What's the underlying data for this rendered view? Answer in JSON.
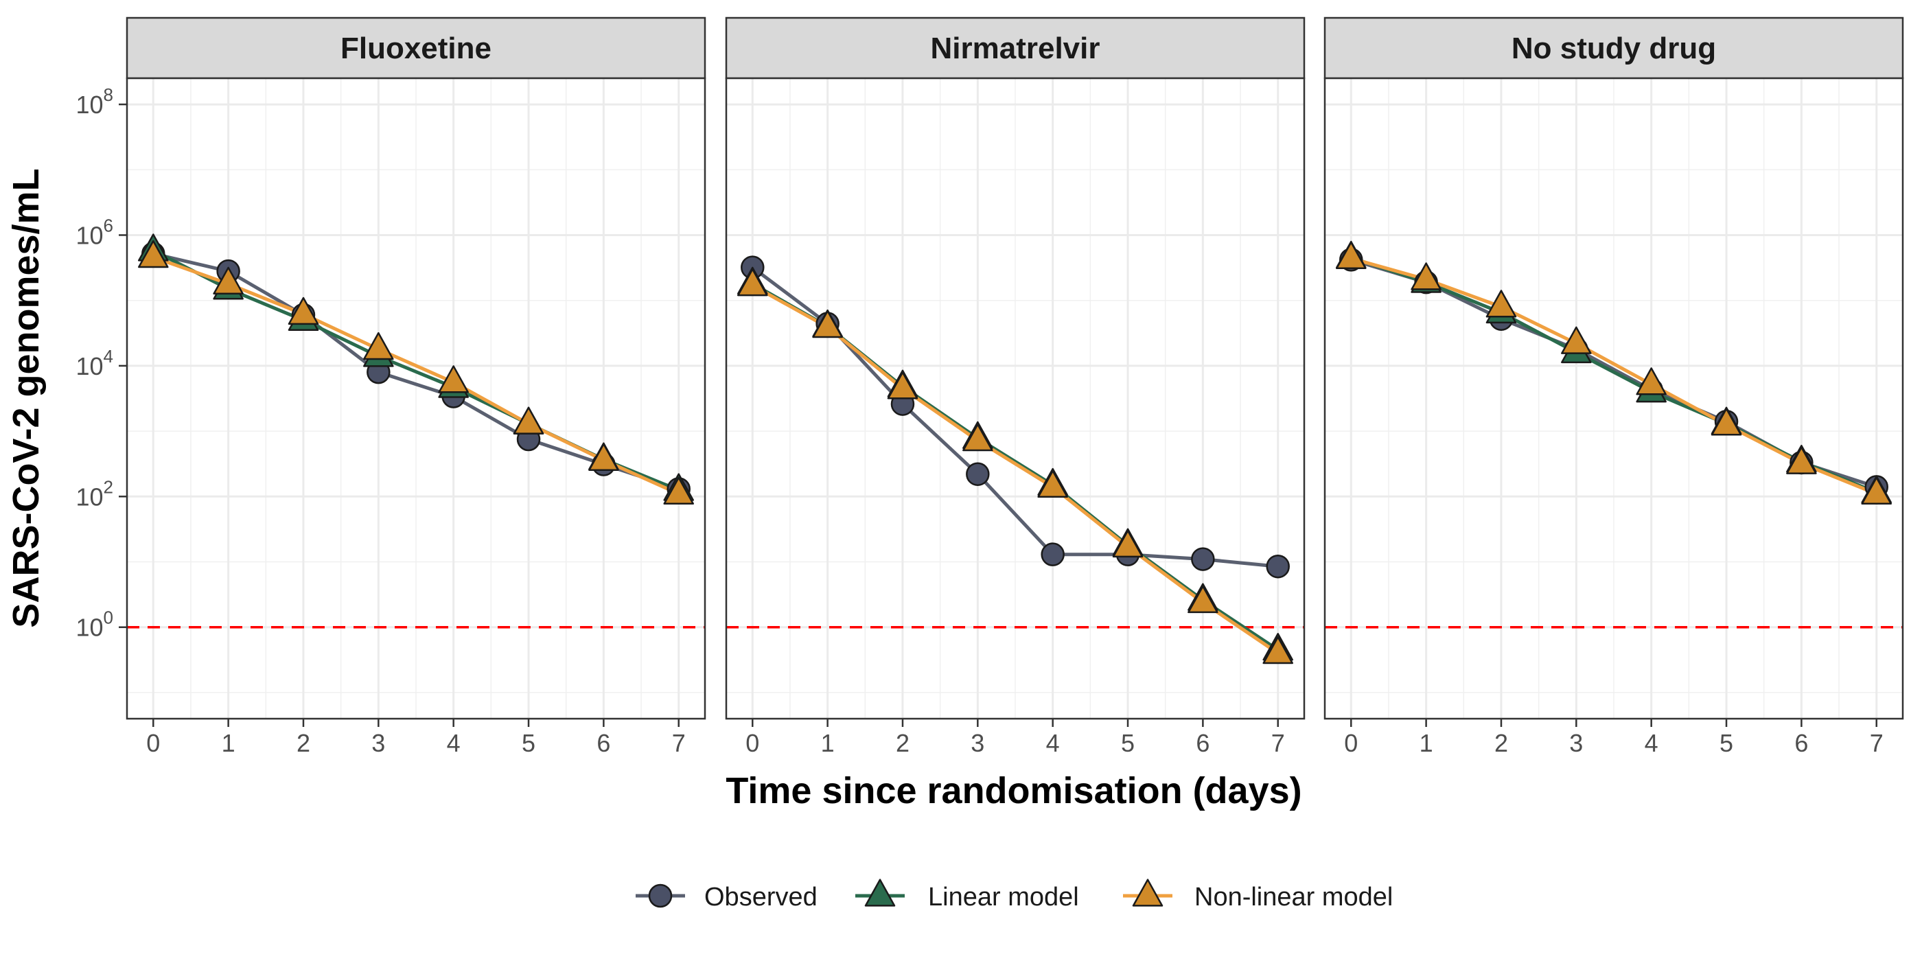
{
  "chart_data": {
    "type": "line",
    "ylabel": "SARS-CoV-2 genomes/mL",
    "xlabel": "Time since randomisation (days)",
    "y_scale": "log10",
    "ylim_log10": [
      -1.4,
      8.4
    ],
    "y_ticks_log10": [
      0,
      2,
      4,
      6,
      8
    ],
    "xlim": [
      -0.35,
      7.35
    ],
    "x_ticks": [
      0,
      1,
      2,
      3,
      4,
      5,
      6,
      7
    ],
    "grid": true,
    "legend_position": "bottom",
    "reference_line": {
      "y": 1,
      "color": "#ff0000",
      "style": "dashed"
    },
    "legend": [
      {
        "key": "observed",
        "label": "Observed"
      },
      {
        "key": "linear",
        "label": "Linear model"
      },
      {
        "key": "nonlinear",
        "label": "Non-linear model"
      }
    ],
    "series_style": {
      "observed": {
        "marker": "circle",
        "fill": "#4a5066",
        "line": "#5a6070"
      },
      "linear": {
        "marker": "triangle",
        "fill": "#2a6b4d",
        "line": "#2a6b4d"
      },
      "nonlinear": {
        "marker": "triangle",
        "fill": "#d08a28",
        "line": "#f0a040"
      }
    },
    "panels": [
      {
        "title": "Fluoxetine",
        "x": [
          0,
          1,
          2,
          3,
          4,
          5,
          6,
          7
        ],
        "observed": [
          520000,
          280000,
          60000,
          8000,
          3400,
          750,
          310,
          130
        ],
        "linear": [
          580000,
          150000,
          50000,
          14000,
          4700,
          1300,
          370,
          125
        ],
        "nonlinear": [
          460000,
          180000,
          62000,
          18000,
          5600,
          1300,
          360,
          110
        ]
      },
      {
        "title": "Nirmatrelvir",
        "x": [
          0,
          1,
          2,
          3,
          4,
          5,
          6,
          7
        ],
        "observed": [
          320000,
          44000,
          2600,
          220,
          13,
          13,
          11,
          8.5
        ],
        "linear": [
          180000,
          40000,
          4800,
          780,
          150,
          18,
          2.6,
          0.45
        ],
        "nonlinear": [
          170000,
          39000,
          4500,
          720,
          140,
          17,
          2.4,
          0.4
        ]
      },
      {
        "title": "No study drug",
        "x": [
          0,
          1,
          2,
          3,
          4,
          5,
          6,
          7
        ],
        "observed": [
          420000,
          190000,
          52000,
          18000,
          4300,
          1400,
          330,
          140
        ],
        "linear": [
          450000,
          190000,
          65000,
          16000,
          4000,
          1300,
          340,
          115
        ],
        "nonlinear": [
          440000,
          210000,
          80000,
          22000,
          5200,
          1250,
          320,
          110
        ]
      }
    ]
  }
}
